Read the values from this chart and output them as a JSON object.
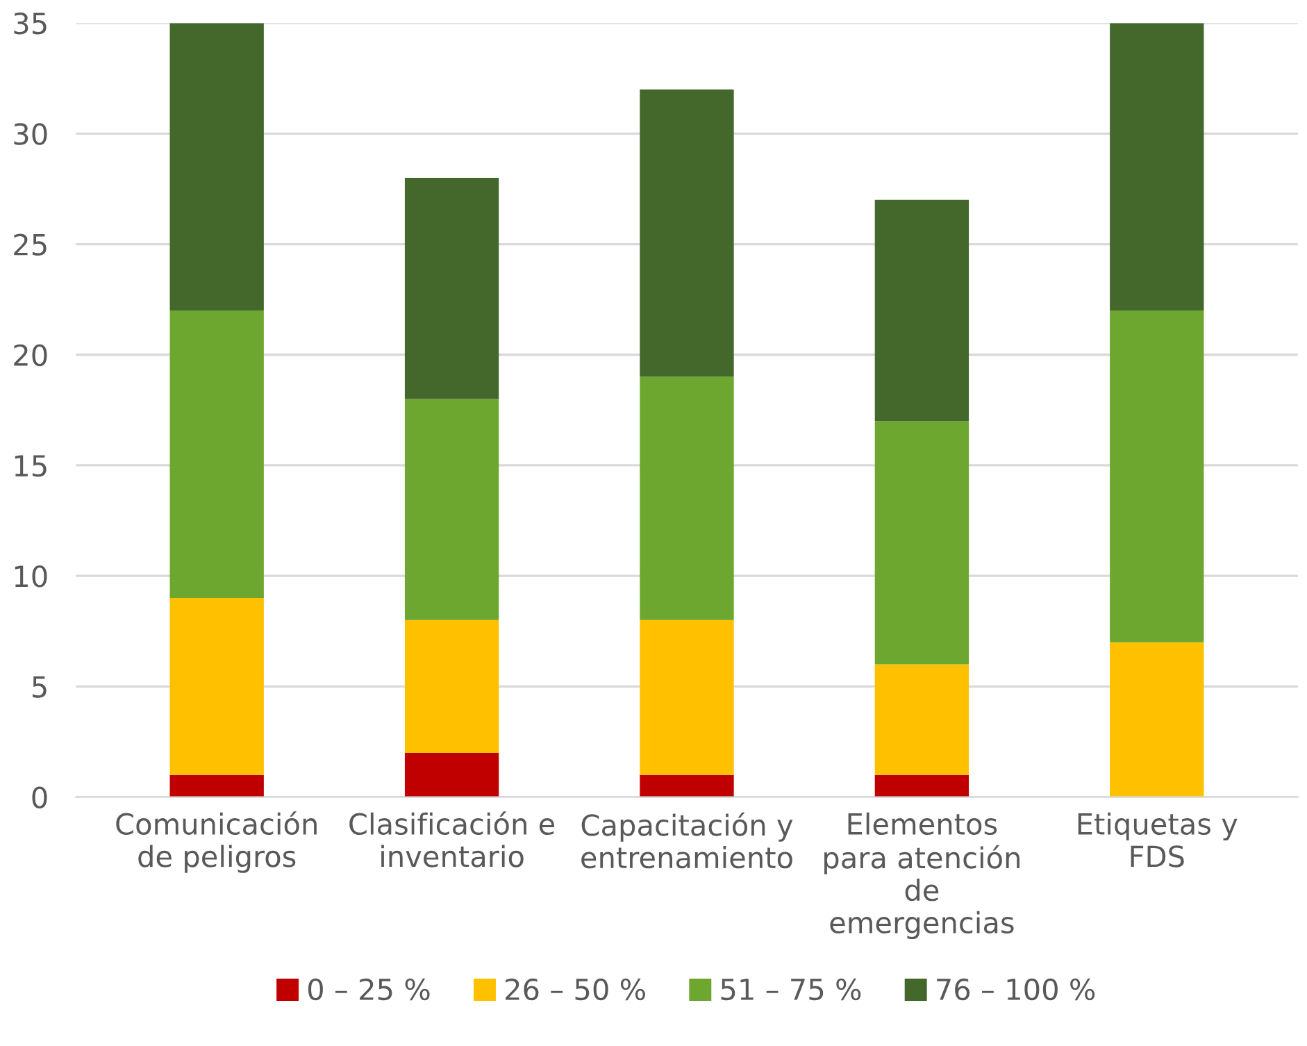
{
  "chart_data": {
    "type": "bar",
    "stacked": true,
    "categories": [
      "Comunicación\nde peligros",
      "Clasificación e\ninventario",
      "Capacitación y\nentrenamiento",
      "Elementos\npara atención\nde\nemergencias",
      "Etiquetas y\nFDS"
    ],
    "series": [
      {
        "name": "0 – 25 %",
        "color": "#c00000",
        "values": [
          1,
          2,
          1,
          1,
          0
        ]
      },
      {
        "name": "26 – 50 %",
        "color": "#ffc000",
        "values": [
          8,
          6,
          7,
          5,
          7
        ]
      },
      {
        "name": "51 – 75 %",
        "color": "#6ea72f",
        "values": [
          13,
          10,
          11,
          11,
          15
        ]
      },
      {
        "name": "76 – 100 %",
        "color": "#44682c",
        "values": [
          13,
          10,
          13,
          10,
          13
        ]
      }
    ],
    "ylim": [
      0,
      35
    ],
    "yticks": [
      0,
      5,
      10,
      15,
      20,
      25,
      30,
      35
    ],
    "grid": "y",
    "legend": "bottom"
  }
}
